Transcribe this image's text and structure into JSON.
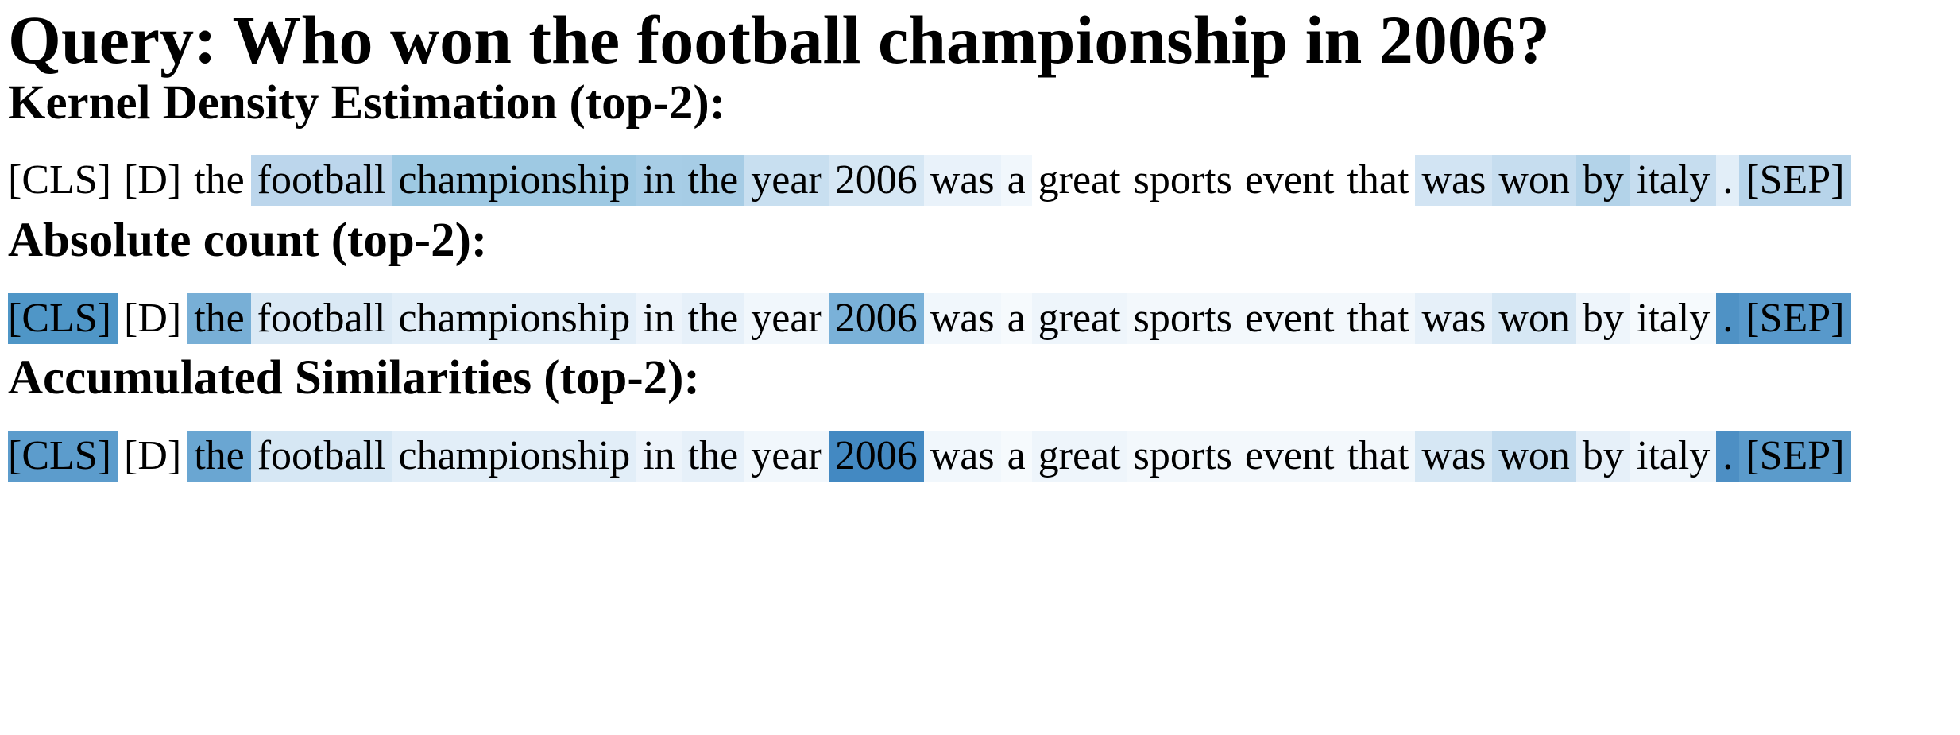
{
  "query": "Query: Who won the football championship in 2006?",
  "tokens": [
    "[CLS]",
    "[D]",
    "the",
    "football",
    "championship",
    "in",
    "the",
    "year",
    "2006",
    "was",
    "a",
    "great",
    "sports",
    "event",
    "that",
    "was",
    "won",
    "by",
    "italy",
    ".",
    "[SEP]"
  ],
  "sections": [
    {
      "title": "Kernel Density Estimation (top-2):",
      "colors": [
        "#ffffff",
        "#ffffff",
        "#ffffff",
        "#bcd6ec",
        "#9ec9e3",
        "#a7cde6",
        "#a6cce5",
        "#c8dff0",
        "#d6e7f4",
        "#e9f2fa",
        "#f1f7fc",
        "#ffffff",
        "#ffffff",
        "#ffffff",
        "#ffffff",
        "#d2e4f3",
        "#c6ddef",
        "#b3d3e9",
        "#c6ddef",
        "#e2eef8",
        "#b7d4ea"
      ]
    },
    {
      "title": "Absolute count (top-2):",
      "colors": [
        "#4f96c7",
        "#ffffff",
        "#78afd6",
        "#dae9f5",
        "#e2eef8",
        "#edf4fb",
        "#e6f0f9",
        "#f1f7fc",
        "#7ab1d8",
        "#f1f7fc",
        "#f6fafd",
        "#eef5fb",
        "#f3f8fc",
        "#f3f8fc",
        "#f3f8fc",
        "#e6f0f9",
        "#d6e7f4",
        "#eef5fb",
        "#f6fafd",
        "#4f92c5",
        "#5899cb"
      ]
    },
    {
      "title": "Accumulated Similarities (top-2):",
      "colors": [
        "#5c9ccc",
        "#ffffff",
        "#6aa6d2",
        "#d6e7f4",
        "#e2eef8",
        "#edf4fb",
        "#e6f0f9",
        "#f1f7fc",
        "#4389c2",
        "#f1f7fc",
        "#f6fafd",
        "#eef5fb",
        "#f3f8fc",
        "#f3f8fc",
        "#f3f8fc",
        "#d6e7f4",
        "#c2dbee",
        "#e6f0f9",
        "#eef5fb",
        "#4d8fc4",
        "#5b9bcb"
      ]
    }
  ]
}
